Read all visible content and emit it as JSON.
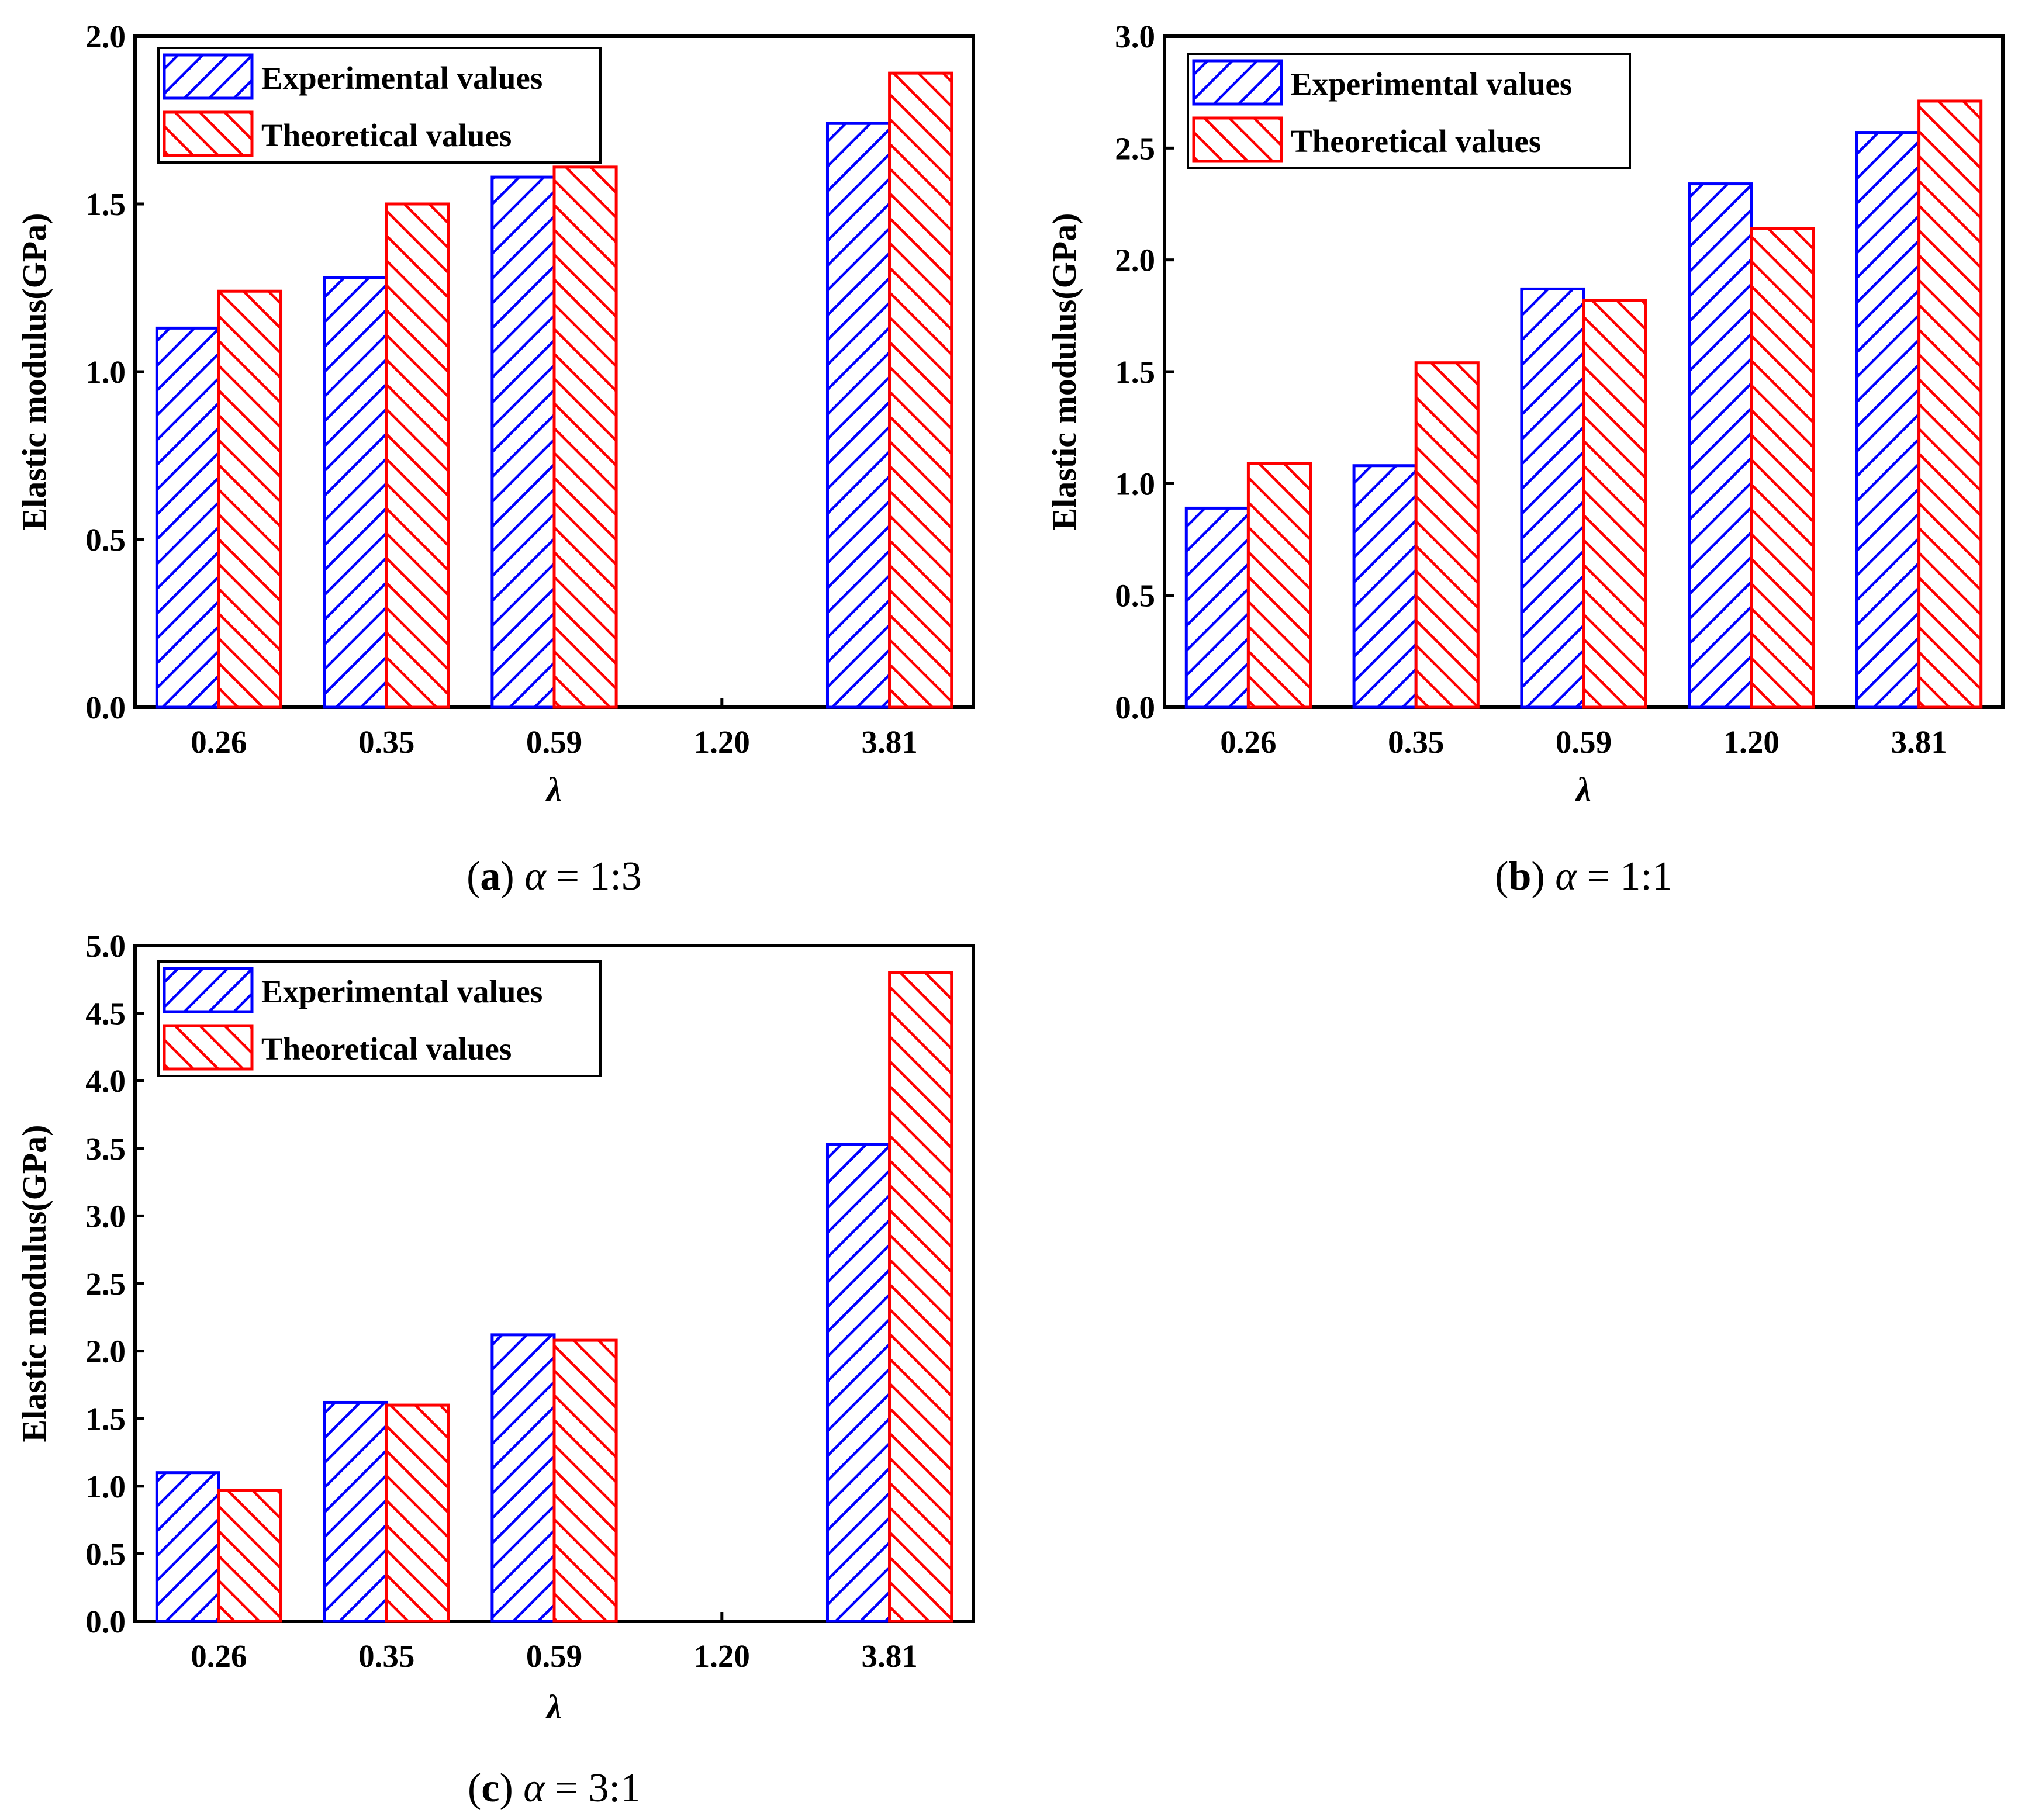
{
  "figure": {
    "panels": [
      {
        "id": "a",
        "caption": {
          "letter": "a",
          "symbol": "α",
          "rest": " = 1:3"
        }
      },
      {
        "id": "b",
        "caption": {
          "letter": "b",
          "symbol": "α",
          "rest": " = 1:1"
        }
      },
      {
        "id": "c",
        "caption": {
          "letter": "c",
          "symbol": "α",
          "rest": " = 3:1"
        }
      }
    ]
  },
  "colors": {
    "experimental": "#0000ff",
    "theoretical": "#ff0000",
    "axis": "#000000",
    "background": "#ffffff"
  },
  "chart_data": [
    {
      "type": "bar",
      "categories": [
        "0.26",
        "0.35",
        "0.59",
        "1.20",
        "3.81"
      ],
      "series": [
        {
          "name": "Experimental values",
          "values": [
            1.13,
            1.28,
            1.58,
            null,
            1.74
          ],
          "pattern": "forward-hatch"
        },
        {
          "name": "Theoretical values",
          "values": [
            1.24,
            1.5,
            1.61,
            null,
            1.89
          ],
          "pattern": "back-hatch"
        }
      ],
      "xlabel": "λ",
      "ylabel": "Elastic modulus(GPa)",
      "ylim": [
        0,
        2.0
      ],
      "yticks": [
        "0.0",
        "0.5",
        "1.0",
        "1.5",
        "2.0"
      ],
      "legend": "top-left",
      "grid": false
    },
    {
      "type": "bar",
      "categories": [
        "0.26",
        "0.35",
        "0.59",
        "1.20",
        "3.81"
      ],
      "series": [
        {
          "name": "Experimental values",
          "values": [
            0.89,
            1.08,
            1.87,
            2.34,
            2.57
          ],
          "pattern": "forward-hatch"
        },
        {
          "name": "Theoretical values",
          "values": [
            1.09,
            1.54,
            1.82,
            2.14,
            2.71
          ],
          "pattern": "back-hatch"
        }
      ],
      "xlabel": "λ",
      "ylabel": "Elastic modulus(GPa)",
      "ylim": [
        0,
        3.0
      ],
      "yticks": [
        "0.0",
        "0.5",
        "1.0",
        "1.5",
        "2.0",
        "2.5",
        "3.0"
      ],
      "legend": "top-left",
      "grid": false
    },
    {
      "type": "bar",
      "categories": [
        "0.26",
        "0.35",
        "0.59",
        "1.20",
        "3.81"
      ],
      "series": [
        {
          "name": "Experimental values",
          "values": [
            1.1,
            1.62,
            2.12,
            null,
            3.53
          ],
          "pattern": "forward-hatch"
        },
        {
          "name": "Theoretical values",
          "values": [
            0.97,
            1.6,
            2.08,
            null,
            4.8
          ],
          "pattern": "back-hatch"
        }
      ],
      "xlabel": "λ",
      "ylabel": "Elastic modulus(GPa)",
      "ylim": [
        0,
        5.0
      ],
      "yticks": [
        "0.0",
        "0.5",
        "1.0",
        "1.5",
        "2.0",
        "2.5",
        "3.0",
        "3.5",
        "4.0",
        "4.5",
        "5.0"
      ],
      "legend": "top-left",
      "grid": false
    }
  ]
}
